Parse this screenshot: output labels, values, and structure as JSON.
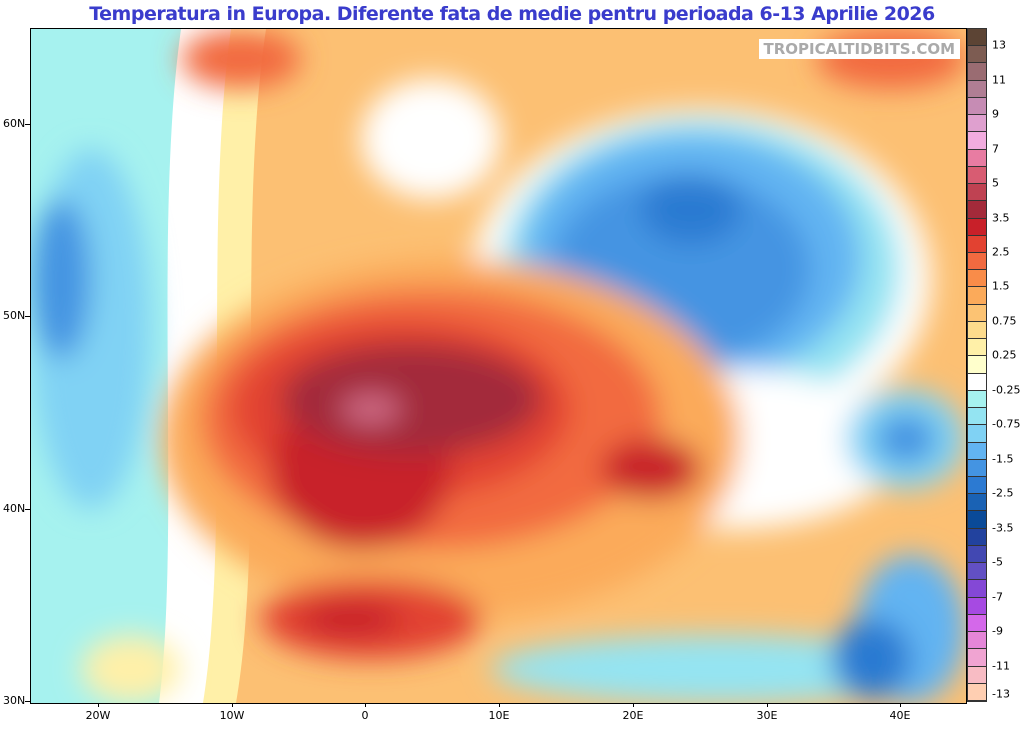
{
  "title": "Temperatura in Europa. Diferente fata de medie pentru perioada 6-13 Aprilie 2026",
  "watermark": "TROPICALTIDBITS.COM",
  "axes": {
    "lat_labels": [
      "60N",
      "50N",
      "40N",
      "30N"
    ],
    "lon_labels": [
      "20W",
      "10W",
      "0",
      "10E",
      "20E",
      "30E",
      "40E"
    ]
  },
  "colorbar": {
    "labels": [
      "13",
      "11",
      "9",
      "7",
      "5",
      "3.5",
      "2.5",
      "1.5",
      "0.75",
      "0.25",
      "-0.25",
      "-0.75",
      "-1.5",
      "-2.5",
      "-3.5",
      "-5",
      "-7",
      "-9",
      "-11",
      "-13"
    ],
    "colors": [
      "#5c4434",
      "#7d5c52",
      "#9a6c72",
      "#b07e94",
      "#c68cb4",
      "#dfa0cf",
      "#f2acdf",
      "#e87ca2",
      "#d85c72",
      "#bf4252",
      "#a32a3a",
      "#c82029",
      "#e24231",
      "#f26a40",
      "#f98c49",
      "#fbaa5a",
      "#fcc373",
      "#fddb8c",
      "#fff0a8",
      "#ffffcc",
      "#ffffff",
      "#a6f2ef",
      "#94e4f2",
      "#80d2f4",
      "#62b4f2",
      "#4494e2",
      "#2c7ad2",
      "#1a62b4",
      "#0a4a98",
      "#22429e",
      "#4248b2",
      "#6250c4",
      "#8448d6",
      "#a64ae2",
      "#d468ea",
      "#e486d8",
      "#f0a4d2",
      "#f8bcc4",
      "#ffcfb2"
    ]
  }
}
